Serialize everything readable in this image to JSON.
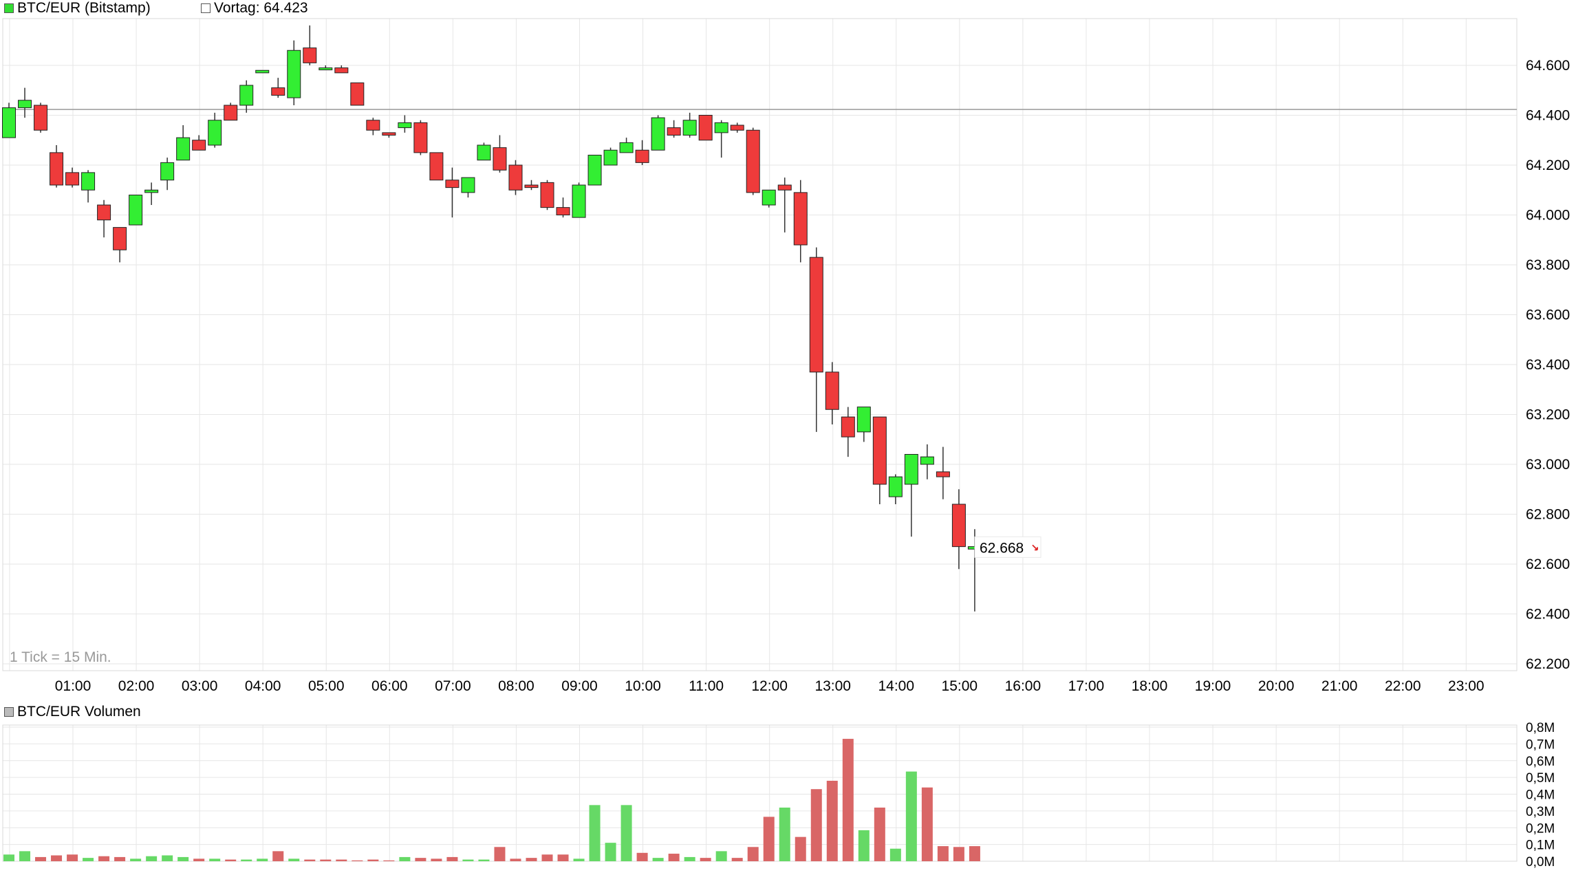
{
  "price_panel": {
    "legend_label": "BTC/EUR (Bitstamp)",
    "legend_color": "#33dd33",
    "reference_label": "Vortag: 64.423",
    "tick_note": "1 Tick = 15 Min."
  },
  "volume_panel": {
    "legend_label": "BTC/EUR Volumen",
    "legend_color": "#bbbbbb"
  },
  "colors": {
    "up": "#33ee33",
    "down": "#ee3b3b",
    "vol_up": "#66d966",
    "vol_down": "#d96666",
    "grid": "#e6e6e6",
    "reference_line": "#999999"
  },
  "chart_data": [
    {
      "type": "candlestick",
      "x_labels": [
        "01:00",
        "02:00",
        "03:00",
        "04:00",
        "05:00",
        "06:00",
        "07:00",
        "08:00",
        "09:00",
        "10:00",
        "11:00",
        "12:00",
        "13:00",
        "14:00",
        "15:00",
        "16:00",
        "17:00",
        "18:00",
        "19:00",
        "20:00",
        "21:00",
        "22:00",
        "23:00"
      ],
      "y_ticks": [
        64600,
        64400,
        64200,
        64000,
        63800,
        63600,
        63400,
        63200,
        63000,
        62800,
        62600,
        62400,
        62200
      ],
      "y_tick_labels": [
        "64.600",
        "64.400",
        "64.200",
        "64.000",
        "63.800",
        "63.600",
        "63.400",
        "63.200",
        "63.000",
        "62.800",
        "62.600",
        "62.400",
        "62.200"
      ],
      "ylim": [
        62160,
        64820
      ],
      "reference_value": 64423,
      "last_value_label": "62.668",
      "last_value": 62668,
      "candles": [
        {
          "o": 64310,
          "h": 64450,
          "l": 64310,
          "c": 64430
        },
        {
          "o": 64430,
          "h": 64510,
          "l": 64390,
          "c": 64460
        },
        {
          "o": 64440,
          "h": 64450,
          "l": 64330,
          "c": 64340
        },
        {
          "o": 64250,
          "h": 64280,
          "l": 64110,
          "c": 64120
        },
        {
          "o": 64170,
          "h": 64190,
          "l": 64110,
          "c": 64120
        },
        {
          "o": 64100,
          "h": 64180,
          "l": 64050,
          "c": 64170
        },
        {
          "o": 64040,
          "h": 64060,
          "l": 63910,
          "c": 63980
        },
        {
          "o": 63950,
          "h": 63950,
          "l": 63810,
          "c": 63860
        },
        {
          "o": 63960,
          "h": 64080,
          "l": 63960,
          "c": 64080
        },
        {
          "o": 64090,
          "h": 64130,
          "l": 64040,
          "c": 64100
        },
        {
          "o": 64140,
          "h": 64230,
          "l": 64100,
          "c": 64210
        },
        {
          "o": 64220,
          "h": 64360,
          "l": 64220,
          "c": 64310
        },
        {
          "o": 64300,
          "h": 64320,
          "l": 64260,
          "c": 64260
        },
        {
          "o": 64280,
          "h": 64410,
          "l": 64270,
          "c": 64380
        },
        {
          "o": 64440,
          "h": 64450,
          "l": 64380,
          "c": 64380
        },
        {
          "o": 64440,
          "h": 64540,
          "l": 64410,
          "c": 64520
        },
        {
          "o": 64570,
          "h": 64580,
          "l": 64570,
          "c": 64580
        },
        {
          "o": 64510,
          "h": 64550,
          "l": 64470,
          "c": 64480
        },
        {
          "o": 64470,
          "h": 64700,
          "l": 64440,
          "c": 64660
        },
        {
          "o": 64670,
          "h": 64760,
          "l": 64600,
          "c": 64610
        },
        {
          "o": 64590,
          "h": 64600,
          "l": 64590,
          "c": 64590
        },
        {
          "o": 64590,
          "h": 64600,
          "l": 64570,
          "c": 64570
        },
        {
          "o": 64530,
          "h": 64530,
          "l": 64440,
          "c": 64440
        },
        {
          "o": 64380,
          "h": 64390,
          "l": 64320,
          "c": 64340
        },
        {
          "o": 64330,
          "h": 64330,
          "l": 64310,
          "c": 64320
        },
        {
          "o": 64350,
          "h": 64400,
          "l": 64330,
          "c": 64370
        },
        {
          "o": 64370,
          "h": 64380,
          "l": 64240,
          "c": 64250
        },
        {
          "o": 64250,
          "h": 64250,
          "l": 64140,
          "c": 64140
        },
        {
          "o": 64140,
          "h": 64190,
          "l": 63990,
          "c": 64110
        },
        {
          "o": 64090,
          "h": 64150,
          "l": 64070,
          "c": 64150
        },
        {
          "o": 64220,
          "h": 64290,
          "l": 64220,
          "c": 64280
        },
        {
          "o": 64270,
          "h": 64320,
          "l": 64170,
          "c": 64180
        },
        {
          "o": 64200,
          "h": 64220,
          "l": 64080,
          "c": 64100
        },
        {
          "o": 64120,
          "h": 64140,
          "l": 64100,
          "c": 64110
        },
        {
          "o": 64130,
          "h": 64140,
          "l": 64020,
          "c": 64030
        },
        {
          "o": 64030,
          "h": 64070,
          "l": 63990,
          "c": 64000
        },
        {
          "o": 63990,
          "h": 64130,
          "l": 63990,
          "c": 64120
        },
        {
          "o": 64120,
          "h": 64240,
          "l": 64120,
          "c": 64240
        },
        {
          "o": 64200,
          "h": 64270,
          "l": 64200,
          "c": 64260
        },
        {
          "o": 64250,
          "h": 64310,
          "l": 64250,
          "c": 64290
        },
        {
          "o": 64260,
          "h": 64300,
          "l": 64200,
          "c": 64210
        },
        {
          "o": 64260,
          "h": 64400,
          "l": 64260,
          "c": 64390
        },
        {
          "o": 64350,
          "h": 64380,
          "l": 64310,
          "c": 64320
        },
        {
          "o": 64320,
          "h": 64410,
          "l": 64310,
          "c": 64380
        },
        {
          "o": 64400,
          "h": 64400,
          "l": 64300,
          "c": 64300
        },
        {
          "o": 64330,
          "h": 64380,
          "l": 64230,
          "c": 64370
        },
        {
          "o": 64360,
          "h": 64370,
          "l": 64330,
          "c": 64340
        },
        {
          "o": 64340,
          "h": 64350,
          "l": 64080,
          "c": 64090
        },
        {
          "o": 64040,
          "h": 64100,
          "l": 64030,
          "c": 64100
        },
        {
          "o": 64120,
          "h": 64150,
          "l": 63930,
          "c": 64100
        },
        {
          "o": 64090,
          "h": 64140,
          "l": 63810,
          "c": 63880
        },
        {
          "o": 63830,
          "h": 63870,
          "l": 63130,
          "c": 63370
        },
        {
          "o": 63370,
          "h": 63410,
          "l": 63160,
          "c": 63220
        },
        {
          "o": 63190,
          "h": 63230,
          "l": 63030,
          "c": 63110
        },
        {
          "o": 63130,
          "h": 63230,
          "l": 63090,
          "c": 63230
        },
        {
          "o": 63190,
          "h": 63190,
          "l": 62840,
          "c": 62920
        },
        {
          "o": 62870,
          "h": 62960,
          "l": 62840,
          "c": 62950
        },
        {
          "o": 62920,
          "h": 63040,
          "l": 62710,
          "c": 63040
        },
        {
          "o": 63000,
          "h": 63080,
          "l": 62940,
          "c": 63030
        },
        {
          "o": 62970,
          "h": 63070,
          "l": 62860,
          "c": 62950
        },
        {
          "o": 62840,
          "h": 62900,
          "l": 62580,
          "c": 62670
        },
        {
          "o": 62660,
          "h": 62740,
          "l": 62410,
          "c": 62670
        }
      ]
    },
    {
      "type": "bar",
      "title": "BTC/EUR Volumen",
      "y_ticks": [
        0,
        0.1,
        0.2,
        0.3,
        0.4,
        0.5,
        0.6,
        0.7,
        0.8
      ],
      "y_tick_labels": [
        "0,0M",
        "0,1M",
        "0,2M",
        "0,3M",
        "0,4M",
        "0,5M",
        "0,6M",
        "0,7M",
        "0,8M"
      ],
      "ylim": [
        0,
        0.8
      ],
      "unit": "M",
      "values": [
        0.04,
        0.06,
        0.025,
        0.035,
        0.04,
        0.02,
        0.03,
        0.025,
        0.015,
        0.03,
        0.035,
        0.025,
        0.015,
        0.015,
        0.01,
        0.01,
        0.015,
        0.06,
        0.015,
        0.01,
        0.01,
        0.01,
        0.005,
        0.01,
        0.005,
        0.025,
        0.02,
        0.015,
        0.025,
        0.01,
        0.01,
        0.085,
        0.015,
        0.02,
        0.04,
        0.04,
        0.015,
        0.335,
        0.11,
        0.335,
        0.05,
        0.02,
        0.045,
        0.025,
        0.02,
        0.06,
        0.02,
        0.085,
        0.265,
        0.32,
        0.145,
        0.43,
        0.48,
        0.73,
        0.185,
        0.32,
        0.075,
        0.535,
        0.44,
        0.09,
        0.085,
        0.09
      ],
      "directions": [
        "up",
        "up",
        "down",
        "down",
        "down",
        "up",
        "down",
        "down",
        "up",
        "up",
        "up",
        "up",
        "down",
        "up",
        "down",
        "up",
        "up",
        "down",
        "up",
        "down",
        "down",
        "down",
        "down",
        "down",
        "down",
        "up",
        "down",
        "down",
        "down",
        "up",
        "up",
        "down",
        "down",
        "down",
        "down",
        "down",
        "up",
        "up",
        "up",
        "up",
        "down",
        "up",
        "down",
        "up",
        "down",
        "up",
        "down",
        "down",
        "down",
        "up",
        "down",
        "down",
        "down",
        "down",
        "up",
        "down",
        "up",
        "up",
        "down",
        "down",
        "down",
        "down"
      ]
    }
  ]
}
